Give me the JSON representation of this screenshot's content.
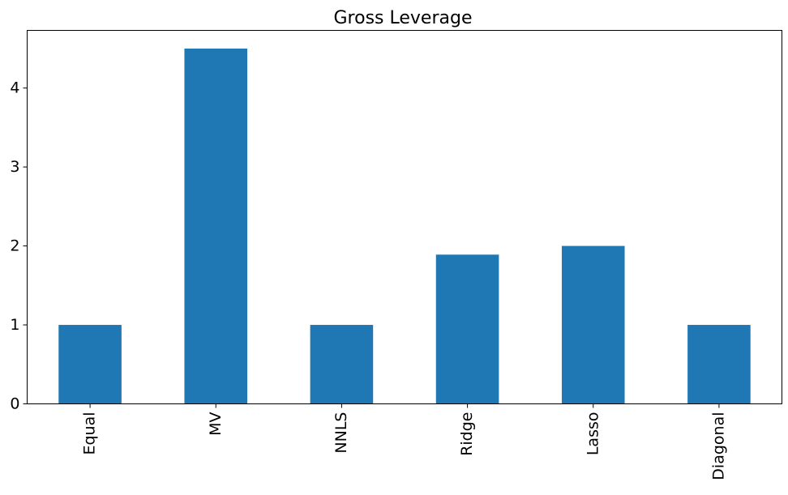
{
  "chart_data": {
    "type": "bar",
    "title": "Gross Leverage",
    "xlabel": "",
    "ylabel": "",
    "categories": [
      "Equal",
      "MV",
      "NNLS",
      "Ridge",
      "Lasso",
      "Diagonal"
    ],
    "values": [
      1.0,
      4.5,
      1.0,
      1.89,
      2.0,
      1.0
    ],
    "ylim": [
      0,
      4.73
    ],
    "yticks": [
      0,
      1,
      2,
      3,
      4
    ],
    "bar_color": "#1f77b4",
    "grid": false,
    "legend": false
  }
}
